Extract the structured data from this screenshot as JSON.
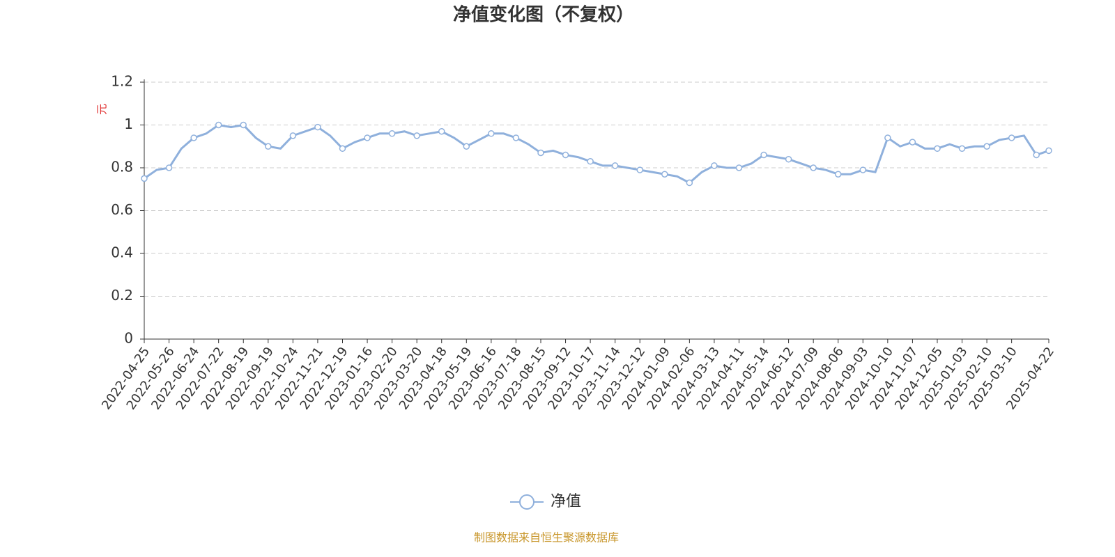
{
  "chart_data": {
    "type": "line",
    "title": "净值变化图（不复权）",
    "y_axis_label": "元",
    "categories": [
      "2022-04-25",
      null,
      "2022-05-26",
      null,
      "2022-06-24",
      null,
      "2022-07-22",
      null,
      "2022-08-19",
      null,
      "2022-09-19",
      null,
      "2022-10-24",
      null,
      "2022-11-21",
      null,
      "2022-12-19",
      null,
      "2023-01-16",
      null,
      "2023-02-20",
      null,
      "2023-03-20",
      null,
      "2023-04-18",
      null,
      "2023-05-19",
      null,
      "2023-06-16",
      null,
      "2023-07-18",
      null,
      "2023-08-15",
      null,
      "2023-09-12",
      null,
      "2023-10-17",
      null,
      "2023-11-14",
      null,
      "2023-12-12",
      null,
      "2024-01-09",
      null,
      "2024-02-06",
      null,
      "2024-03-13",
      null,
      "2024-04-11",
      null,
      "2024-05-14",
      null,
      "2024-06-12",
      null,
      "2024-07-09",
      null,
      "2024-08-06",
      null,
      "2024-09-03",
      null,
      "2024-10-10",
      null,
      "2024-11-07",
      null,
      "2024-12-05",
      null,
      "2025-01-03",
      null,
      "2025-02-10",
      null,
      "2025-03-10",
      null,
      null,
      "2025-04-22"
    ],
    "series": [
      {
        "name": "净值",
        "color": "#8fb0dc",
        "values": [
          0.75,
          0.79,
          0.8,
          0.89,
          0.94,
          0.96,
          1.0,
          0.99,
          1.0,
          0.94,
          0.9,
          0.89,
          0.95,
          0.97,
          0.99,
          0.95,
          0.89,
          0.92,
          0.94,
          0.96,
          0.96,
          0.97,
          0.95,
          0.96,
          0.97,
          0.94,
          0.9,
          0.93,
          0.96,
          0.96,
          0.94,
          0.91,
          0.87,
          0.88,
          0.86,
          0.85,
          0.83,
          0.81,
          0.81,
          0.8,
          0.79,
          0.78,
          0.77,
          0.76,
          0.73,
          0.78,
          0.81,
          0.8,
          0.8,
          0.82,
          0.86,
          0.85,
          0.84,
          0.82,
          0.8,
          0.79,
          0.77,
          0.77,
          0.79,
          0.78,
          0.94,
          0.9,
          0.92,
          0.89,
          0.89,
          0.91,
          0.89,
          0.9,
          0.9,
          0.93,
          0.94,
          0.95,
          0.86,
          0.88
        ]
      }
    ],
    "ylim": [
      0,
      1.2
    ],
    "yticks": [
      0,
      0.2,
      0.4,
      0.6,
      0.8,
      1,
      1.2
    ],
    "grid": true,
    "legend": "bottom",
    "source": "制图数据来自恒生聚源数据库"
  }
}
